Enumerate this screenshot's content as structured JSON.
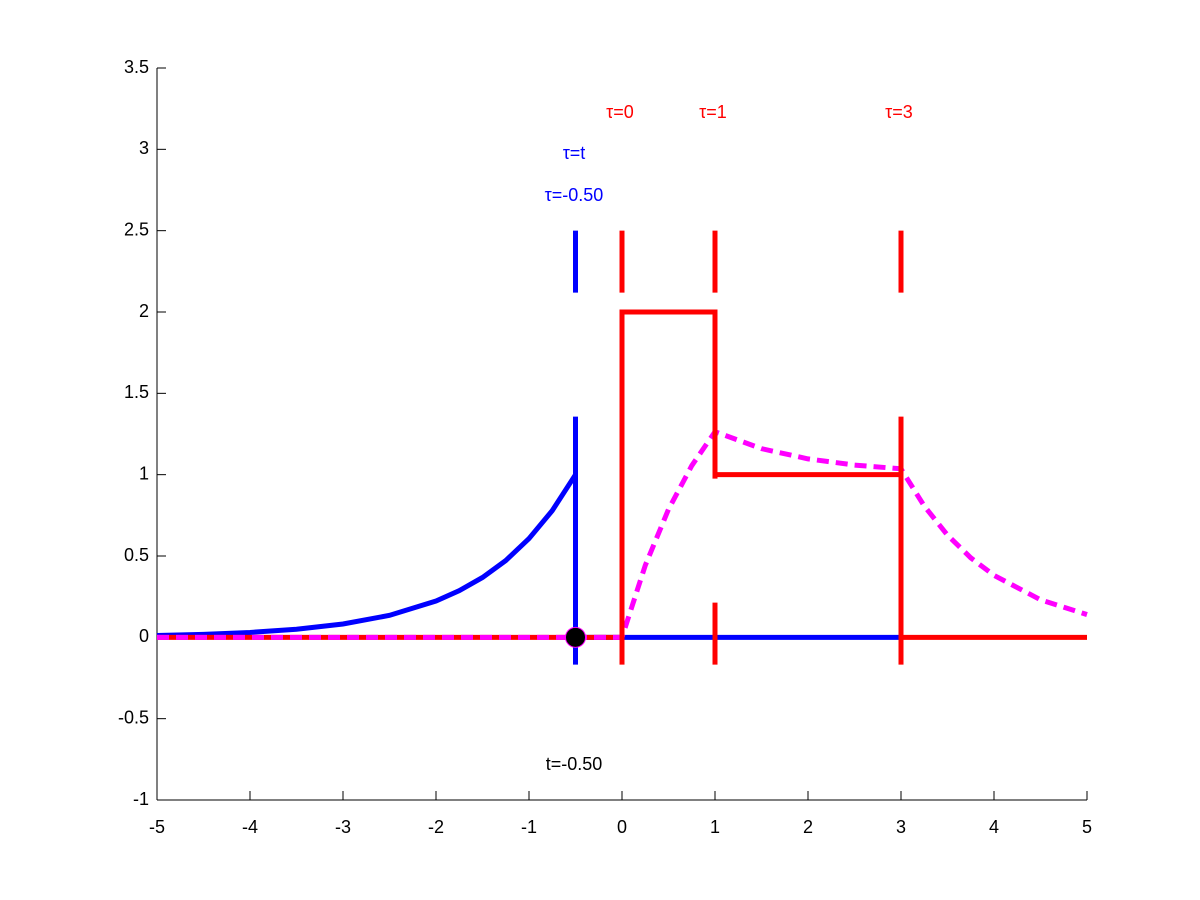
{
  "chart_data": {
    "type": "line",
    "xlim": [
      -5,
      5
    ],
    "ylim": [
      -1,
      3.5
    ],
    "xticks": [
      -5,
      -4,
      -3,
      -2,
      -1,
      0,
      1,
      2,
      3,
      4,
      5
    ],
    "yticks": [
      -1,
      -0.5,
      0,
      0.5,
      1,
      1.5,
      2,
      2.5,
      3,
      3.5
    ],
    "series": [
      {
        "color": "#0000ff",
        "style": "solid",
        "x": [
          -5,
          -4.5,
          -4,
          -3.5,
          -3,
          -2.5,
          -2,
          -1.75,
          -1.5,
          -1.25,
          -1,
          -0.75,
          -0.5,
          -0.5,
          3
        ],
        "values": [
          0.011,
          0.018,
          0.03,
          0.05,
          0.082,
          0.135,
          0.223,
          0.287,
          0.368,
          0.472,
          0.607,
          0.779,
          1,
          0,
          0
        ]
      },
      {
        "color": "#ff0000",
        "style": "solid",
        "x": [
          -5,
          0,
          0,
          1,
          1,
          3,
          3,
          5
        ],
        "values": [
          0,
          0,
          2,
          2,
          1,
          1,
          0,
          0
        ]
      },
      {
        "color": "#ff00ff",
        "style": "dashed",
        "x": [
          -5,
          0,
          0.25,
          0.5,
          0.75,
          1,
          1.5,
          2,
          2.5,
          3,
          3.25,
          3.5,
          3.75,
          4,
          4.5,
          5
        ],
        "values": [
          0,
          0,
          0.442,
          0.787,
          1.055,
          1.264,
          1.16,
          1.097,
          1.059,
          1.036,
          0.807,
          0.628,
          0.489,
          0.381,
          0.231,
          0.14
        ]
      }
    ],
    "vlines": [
      {
        "x": -0.5,
        "y": [
          -0.25,
          2.5
        ],
        "color": "#0000ff"
      },
      {
        "x": 0,
        "y": [
          -0.25,
          2.5
        ],
        "color": "#ff0000"
      },
      {
        "x": 1,
        "y": [
          -0.25,
          2.5
        ],
        "color": "#ff0000"
      },
      {
        "x": 3,
        "y": [
          -0.25,
          2.5
        ],
        "color": "#ff0000"
      }
    ],
    "point": {
      "x": -0.5,
      "y": 0,
      "color": "#000000"
    },
    "annotations": [
      "τ=t",
      "τ=-0.50",
      "τ=0",
      "τ=1",
      "τ=3",
      "t=-0.50"
    ]
  }
}
